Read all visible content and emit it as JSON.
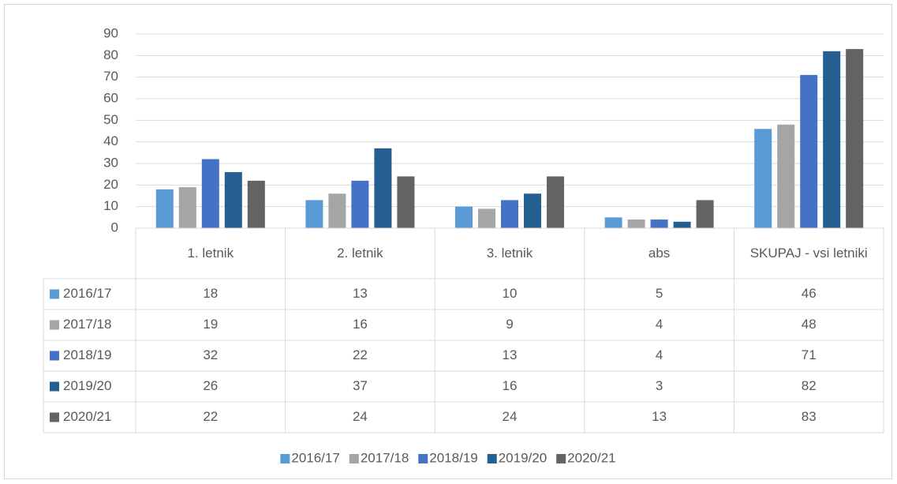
{
  "chart_data": {
    "type": "bar",
    "categories": [
      "1. letnik",
      "2. letnik",
      "3. letnik",
      "abs",
      "SKUPAJ - vsi letniki"
    ],
    "series": [
      {
        "name": "2016/17",
        "color": "#5b9bd5",
        "values": [
          18,
          13,
          10,
          5,
          46
        ]
      },
      {
        "name": "2017/18",
        "color": "#a5a5a5",
        "values": [
          19,
          16,
          9,
          4,
          48
        ]
      },
      {
        "name": "2018/19",
        "color": "#4472c4",
        "values": [
          32,
          22,
          13,
          4,
          71
        ]
      },
      {
        "name": "2019/20",
        "color": "#255e91",
        "values": [
          26,
          37,
          16,
          3,
          82
        ]
      },
      {
        "name": "2020/21",
        "color": "#636363",
        "values": [
          22,
          24,
          24,
          13,
          83
        ]
      }
    ],
    "ylim": [
      0,
      90
    ],
    "yticks": [
      0,
      10,
      20,
      30,
      40,
      50,
      60,
      70,
      80,
      90
    ],
    "grid": true,
    "legend": "bottom"
  }
}
